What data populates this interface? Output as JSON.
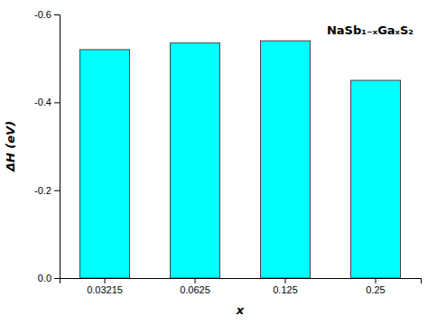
{
  "chart_data": {
    "type": "bar",
    "categories": [
      "0.03215",
      "0.0625",
      "0.125",
      "0.25"
    ],
    "values": [
      -0.52,
      -0.535,
      -0.54,
      -0.45
    ],
    "color": "#00FFFF",
    "xlabel": "x",
    "ylabel": "ΔH (eV)",
    "annotation": "NaSb₁₋ₓGaₓS₂",
    "ylim": [
      0,
      -0.6
    ],
    "yticks": [
      -0.6,
      -0.4,
      -0.2,
      {
        "value": 0,
        "label": "0.0"
      }
    ],
    "grid": false
  }
}
